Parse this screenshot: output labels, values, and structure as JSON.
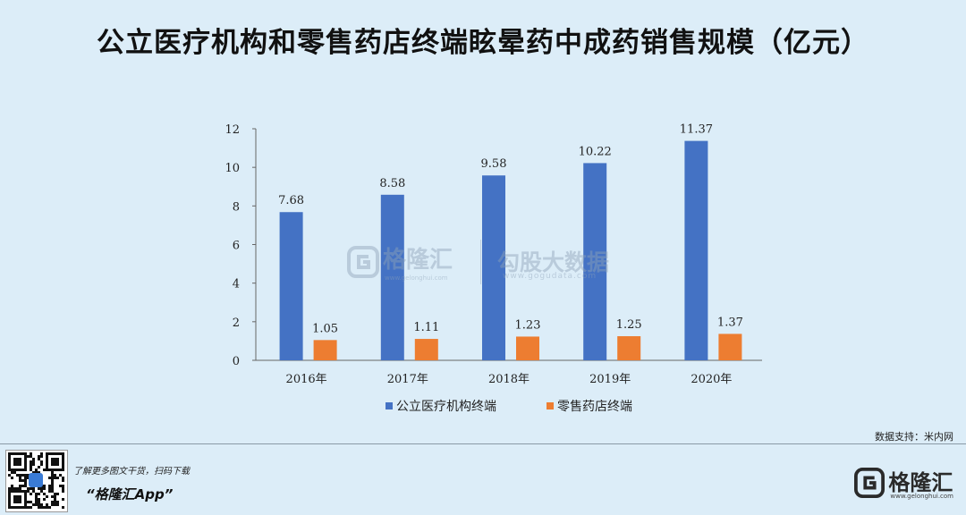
{
  "header": {
    "title": "公立医疗机构和零售药店终端眩晕药中成药销售规模（亿元）"
  },
  "chart_data": {
    "type": "bar",
    "categories": [
      "2016年",
      "2017年",
      "2018年",
      "2019年",
      "2020年"
    ],
    "series": [
      {
        "name": "公立医疗机构终端",
        "values": [
          7.68,
          8.58,
          9.58,
          10.22,
          11.37
        ],
        "labels": [
          "7.68",
          "8.58",
          "9.58",
          "10.22",
          "11.37"
        ],
        "color": "#4472c4"
      },
      {
        "name": "零售药店终端",
        "values": [
          1.05,
          1.11,
          1.23,
          1.25,
          1.37
        ],
        "labels": [
          "1.05",
          "1.11",
          "1.23",
          "1.25",
          "1.37"
        ],
        "color": "#ed7d31"
      }
    ],
    "ylim": [
      0,
      12
    ],
    "yticks": [
      0,
      2,
      4,
      6,
      8,
      10,
      12
    ],
    "legend": "bottom"
  },
  "watermark": {
    "left_text": "格隆汇",
    "left_url": "www.gelonghui.com",
    "right_text": "勾股大数据",
    "right_url": "www.gogudata.com"
  },
  "source": "数据支持：米内网",
  "footer": {
    "promo": "了解更多图文干货，扫码下载",
    "app_name": "“格隆汇App”",
    "brand": "格隆汇",
    "brand_url": "www.gelonghui.com"
  }
}
